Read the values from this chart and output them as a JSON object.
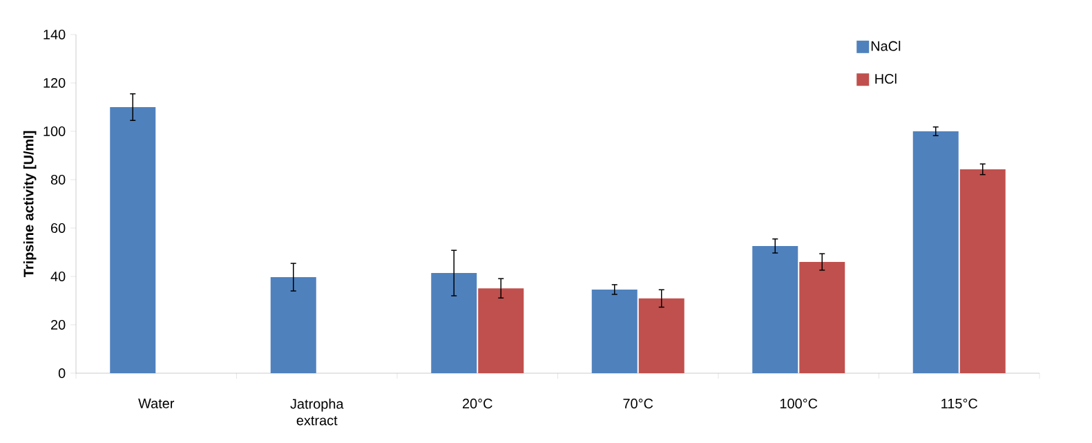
{
  "chart_data": {
    "type": "bar",
    "ylabel": "Tripsine activity [U/ml]",
    "categories": [
      "Water",
      "Jatropha extract",
      "20°C",
      "70°C",
      "100°C",
      "115°C"
    ],
    "series": [
      {
        "name": "NaCl",
        "color": "#4f81bd",
        "values": [
          110,
          39.7,
          41.4,
          34.6,
          52.6,
          100
        ],
        "errors": [
          5.5,
          5.7,
          9.4,
          2,
          2.9,
          1.8
        ]
      },
      {
        "name": "HCl",
        "color": "#c0504d",
        "values": [
          null,
          null,
          35.1,
          30.9,
          46,
          84.3
        ],
        "errors": [
          null,
          null,
          4,
          3.6,
          3.4,
          2.2
        ]
      }
    ],
    "ylim": [
      0,
      140
    ],
    "yticks": [
      0,
      20,
      40,
      60,
      80,
      100,
      120,
      140
    ],
    "grid": false,
    "legend": "top right"
  }
}
